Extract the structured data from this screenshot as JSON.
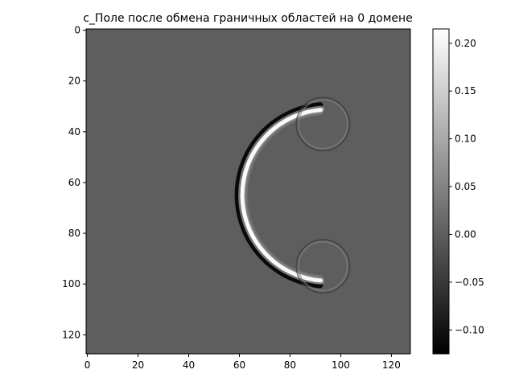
{
  "chart_data": {
    "type": "heatmap",
    "title": "c_Поле после обмена граничных областей на 0 домене",
    "xlabel": "",
    "ylabel": "",
    "xlim": [
      -0.5,
      127.5
    ],
    "ylim": [
      127.5,
      -0.5
    ],
    "x_ticks": [
      0,
      20,
      40,
      60,
      80,
      100,
      120
    ],
    "y_ticks": [
      0,
      20,
      40,
      60,
      80,
      100,
      120
    ],
    "colormap": "gray",
    "background_value": 0.0,
    "colorbar": {
      "min": -0.125,
      "max": 0.215,
      "ticks": [
        0.2,
        0.15,
        0.1,
        0.05,
        0.0,
        -0.05,
        -0.1
      ],
      "tick_labels": [
        "0.20",
        "0.15",
        "0.10",
        "0.05",
        "0.00",
        "−0.05",
        "−0.10"
      ]
    },
    "features": [
      {
        "name": "main arc (wavefront)",
        "center": [
          95,
          65
        ],
        "radius": 34,
        "angle_from_deg": 95,
        "angle_to_deg": 265,
        "peak": 0.215,
        "trough": -0.125
      },
      {
        "name": "upper small ring",
        "center": [
          93,
          37
        ],
        "radius": 10,
        "amplitude": 0.05
      },
      {
        "name": "lower small ring",
        "center": [
          93,
          93
        ],
        "radius": 10,
        "amplitude": 0.05
      }
    ]
  }
}
